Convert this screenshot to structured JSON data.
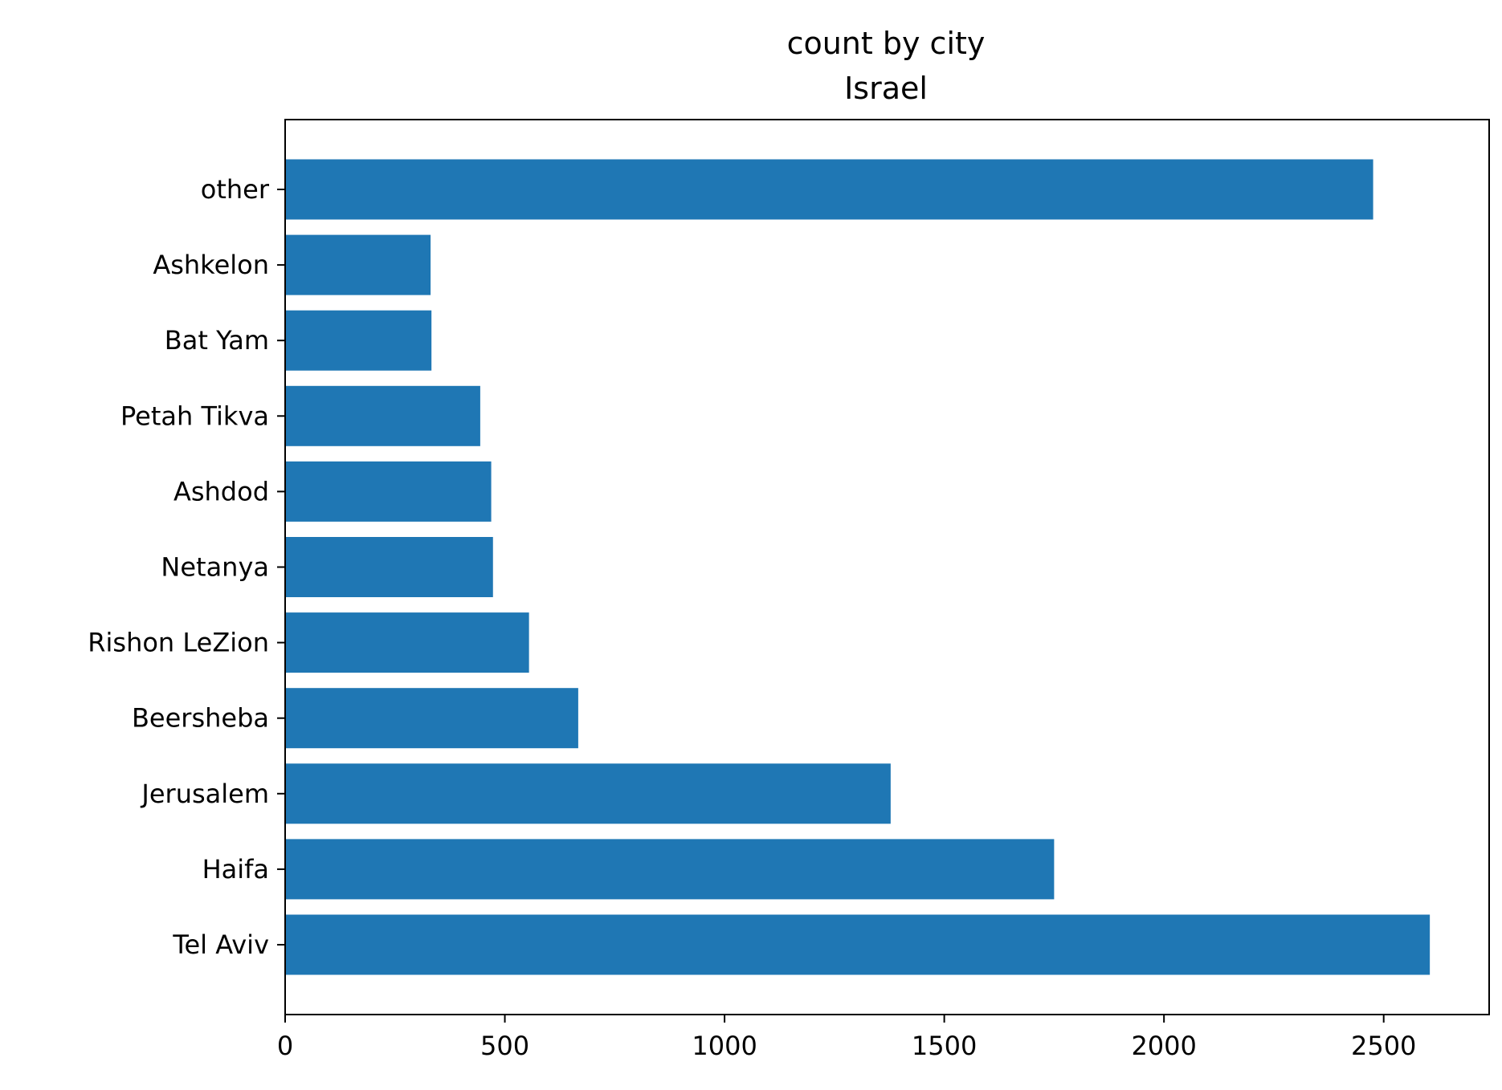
{
  "chart_data": {
    "type": "bar",
    "orientation": "horizontal",
    "title_lines": [
      "count by city",
      "Israel"
    ],
    "categories": [
      "Tel Aviv",
      "Haifa",
      "Jerusalem",
      "Beersheba",
      "Rishon LeZion",
      "Netanya",
      "Ashdod",
      "Petah Tikva",
      "Bat Yam",
      "Ashkelon",
      "other"
    ],
    "values": [
      2605,
      1750,
      1378,
      667,
      555,
      473,
      469,
      444,
      333,
      331,
      2476
    ],
    "xlim": [
      0,
      2740
    ],
    "xticks": [
      0,
      500,
      1000,
      1500,
      2000,
      2500
    ],
    "bar_color": "#1f77b4",
    "grid": false,
    "legend": false
  }
}
